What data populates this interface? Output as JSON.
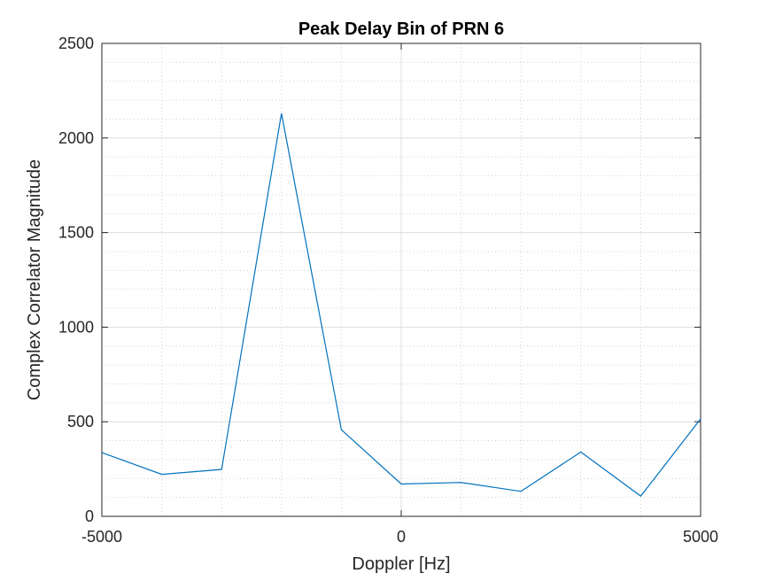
{
  "chart_data": {
    "type": "line",
    "title": "Peak Delay Bin of PRN 6",
    "xlabel": "Doppler [Hz]",
    "ylabel": "Complex Correlator Magnitude",
    "xlim": [
      -5000,
      5000
    ],
    "ylim": [
      0,
      2500
    ],
    "x_ticks": [
      -5000,
      0,
      5000
    ],
    "x_tick_labels": [
      "-5000",
      "0",
      "5000"
    ],
    "y_ticks": [
      0,
      500,
      1000,
      1500,
      2000,
      2500
    ],
    "y_tick_labels": [
      "0",
      "500",
      "1000",
      "1500",
      "2000",
      "2500"
    ],
    "x_minor_step": 1000,
    "y_minor_step": 100,
    "grid": true,
    "series": [
      {
        "color": "#0072bd",
        "x": [
          -5000,
          -4000,
          -3000,
          -2000,
          -1000,
          0,
          1000,
          2000,
          3000,
          4000,
          5000
        ],
        "y": [
          337,
          222,
          248,
          2130,
          458,
          171,
          179,
          132,
          340,
          107,
          515
        ]
      }
    ]
  }
}
